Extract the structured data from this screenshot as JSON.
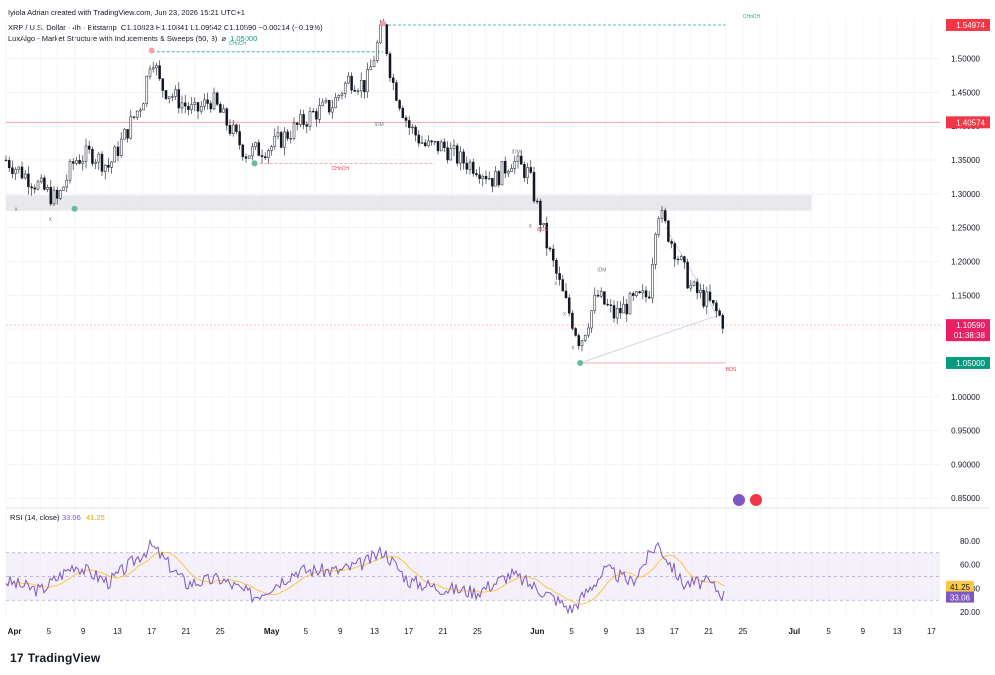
{
  "header": {
    "credit": "Iyiola Adrian created with TradingView.com, Jun 23, 2026 15:21 UTC+1",
    "symbol_line": "XRP / U.S. Dollar · 4h · Bitstamp",
    "ohlc": "O1.10823  H1.10841  L1.09542  C1.10590  −0.00214 (−0.19%)",
    "indicator_name": "LuxAlgo - Market Structure with Inducements & Sweeps (50, 3)",
    "indicator_symbol": "⌀",
    "indicator_value": "1.05000"
  },
  "colors": {
    "up": "#131722",
    "down": "#131722",
    "resistance": "#f23645",
    "choch_bull": "#089981",
    "choch_bear": "#f23645",
    "rsi": "#7e57c2",
    "rsi_ma": "#f9c846",
    "current_price": "#e91e63",
    "support_tag": "#089981"
  },
  "price_axis": {
    "ticks": [
      "1.50000",
      "1.45000",
      "1.40000",
      "1.35000",
      "1.30000",
      "1.25000",
      "1.20000",
      "1.15000",
      "1.10000",
      "1.05000",
      "1.00000",
      "0.95000",
      "0.90000",
      "0.85000"
    ]
  },
  "price_tags": {
    "high": "1.54974",
    "resistance": "1.40574",
    "current": "1.10590",
    "countdown": "01:38:38",
    "support": "1.05000"
  },
  "rsi_panel": {
    "title": "RSI (14, close)",
    "rsi_value": "33.06",
    "ma_value": "41.25",
    "ticks": [
      "80.00",
      "60.00",
      "40.00",
      "20.00"
    ]
  },
  "x_axis": {
    "ticks": [
      "Apr",
      "5",
      "9",
      "13",
      "17",
      "21",
      "25",
      "May",
      "5",
      "9",
      "13",
      "17",
      "21",
      "25",
      "Jun",
      "5",
      "9",
      "13",
      "17",
      "21",
      "25",
      "Jul",
      "5",
      "9",
      "13",
      "17"
    ]
  },
  "annotations": {
    "choch": "CHoCH",
    "bos": "BOS",
    "idm": "IDM",
    "sweep": "x"
  },
  "chart_data": {
    "type": "candlestick",
    "title": "XRP / U.S. Dollar · 4h · Bitstamp",
    "ylim": [
      0.84,
      1.56
    ],
    "x_range": [
      "Mar 31 2026",
      "Jul 18 2026"
    ],
    "last_candle": {
      "open": 1.10823,
      "high": 1.10841,
      "low": 1.09542,
      "close": 1.1059
    },
    "close_path": [
      {
        "x": "Mar 31",
        "y": 1.35
      },
      {
        "x": "Apr 2",
        "y": 1.33
      },
      {
        "x": "Apr 4",
        "y": 1.31
      },
      {
        "x": "Apr 6",
        "y": 1.29
      },
      {
        "x": "Apr 8",
        "y": 1.35
      },
      {
        "x": "Apr 10",
        "y": 1.36
      },
      {
        "x": "Apr 12",
        "y": 1.34
      },
      {
        "x": "Apr 14",
        "y": 1.39
      },
      {
        "x": "Apr 16",
        "y": 1.44
      },
      {
        "x": "Apr 17",
        "y": 1.51
      },
      {
        "x": "Apr 18",
        "y": 1.46
      },
      {
        "x": "Apr 20",
        "y": 1.44
      },
      {
        "x": "Apr 22",
        "y": 1.42
      },
      {
        "x": "Apr 24",
        "y": 1.44
      },
      {
        "x": "Apr 26",
        "y": 1.4
      },
      {
        "x": "Apr 28",
        "y": 1.36
      },
      {
        "x": "May 1",
        "y": 1.37
      },
      {
        "x": "May 4",
        "y": 1.4
      },
      {
        "x": "May 6",
        "y": 1.42
      },
      {
        "x": "May 8",
        "y": 1.43
      },
      {
        "x": "May 10",
        "y": 1.47
      },
      {
        "x": "May 12",
        "y": 1.46
      },
      {
        "x": "May 14",
        "y": 1.55
      },
      {
        "x": "May 15",
        "y": 1.47
      },
      {
        "x": "May 17",
        "y": 1.4
      },
      {
        "x": "May 19",
        "y": 1.37
      },
      {
        "x": "May 21",
        "y": 1.37
      },
      {
        "x": "May 23",
        "y": 1.35
      },
      {
        "x": "May 25",
        "y": 1.34
      },
      {
        "x": "May 27",
        "y": 1.32
      },
      {
        "x": "May 29",
        "y": 1.35
      },
      {
        "x": "May 31",
        "y": 1.33
      },
      {
        "x": "Jun 2",
        "y": 1.23
      },
      {
        "x": "Jun 4",
        "y": 1.15
      },
      {
        "x": "Jun 6",
        "y": 1.08
      },
      {
        "x": "Jun 8",
        "y": 1.15
      },
      {
        "x": "Jun 10",
        "y": 1.12
      },
      {
        "x": "Jun 12",
        "y": 1.14
      },
      {
        "x": "Jun 14",
        "y": 1.15
      },
      {
        "x": "Jun 15",
        "y": 1.28
      },
      {
        "x": "Jun 17",
        "y": 1.22
      },
      {
        "x": "Jun 19",
        "y": 1.16
      },
      {
        "x": "Jun 21",
        "y": 1.14
      },
      {
        "x": "Jun 23",
        "y": 1.106
      }
    ],
    "levels": [
      {
        "price": 1.40574,
        "kind": "resistance-line"
      },
      {
        "price": 1.1059,
        "kind": "current-price"
      },
      {
        "price": 1.05,
        "kind": "support"
      },
      {
        "price": 1.54974,
        "kind": "swing-high"
      }
    ],
    "zones": [
      {
        "from": 1.275,
        "to": 1.298,
        "kind": "sweep-zone"
      }
    ],
    "rsi": {
      "ylim": [
        15,
        85
      ],
      "overbought": 70,
      "oversold": 30,
      "rsi_last": 33.06,
      "ma_last": 41.25,
      "rsi_path": [
        {
          "x": "Mar 31",
          "y": 46
        },
        {
          "x": "Apr 4",
          "y": 38
        },
        {
          "x": "Apr 8",
          "y": 60
        },
        {
          "x": "Apr 12",
          "y": 45
        },
        {
          "x": "Apr 17",
          "y": 76
        },
        {
          "x": "Apr 21",
          "y": 44
        },
        {
          "x": "Apr 25",
          "y": 48
        },
        {
          "x": "Apr 29",
          "y": 33
        },
        {
          "x": "May 4",
          "y": 55
        },
        {
          "x": "May 9",
          "y": 55
        },
        {
          "x": "May 12",
          "y": 62
        },
        {
          "x": "May 14",
          "y": 72
        },
        {
          "x": "May 17",
          "y": 46
        },
        {
          "x": "May 21",
          "y": 40
        },
        {
          "x": "May 25",
          "y": 37
        },
        {
          "x": "May 29",
          "y": 52
        },
        {
          "x": "Jun 2",
          "y": 36
        },
        {
          "x": "Jun 5",
          "y": 22
        },
        {
          "x": "Jun 9",
          "y": 56
        },
        {
          "x": "Jun 12",
          "y": 45
        },
        {
          "x": "Jun 15",
          "y": 78
        },
        {
          "x": "Jun 18",
          "y": 44
        },
        {
          "x": "Jun 21",
          "y": 45
        },
        {
          "x": "Jun 23",
          "y": 33
        }
      ]
    }
  }
}
